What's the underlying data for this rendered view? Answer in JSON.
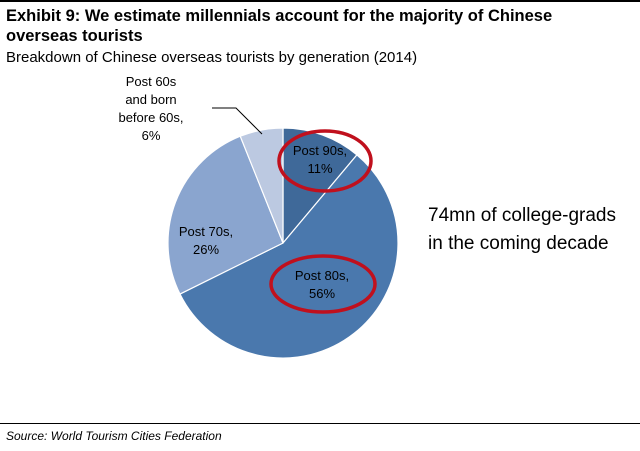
{
  "header": {
    "title": "Exhibit 9: We estimate millennials account for the majority of Chinese overseas tourists",
    "subtitle": "Breakdown of Chinese overseas tourists by generation (2014)"
  },
  "chart_data": {
    "type": "pie",
    "title": "Breakdown of Chinese overseas tourists by generation (2014)",
    "categories": [
      "Post 90s",
      "Post 80s",
      "Post 70s",
      "Post 60s and born before 60s"
    ],
    "values": [
      11,
      56,
      26,
      6
    ],
    "unit": "%",
    "labels": [
      [
        "Post 90s,",
        "11%"
      ],
      [
        "Post 80s,",
        "56%"
      ],
      [
        "Post 70s,",
        "26%"
      ],
      [
        "Post 60s",
        "and born",
        "before 60s,",
        "6%"
      ]
    ],
    "colors": [
      "#3f6999",
      "#4a78ad",
      "#8aa5cf",
      "#bcc9e1"
    ],
    "highlight_color": "#c0101d",
    "annotation": "74mn of college-grads in the coming decade"
  },
  "annotation": {
    "line1": "74mn of college-grads",
    "line2": "in the coming decade"
  },
  "footer": {
    "source": "Source: World Tourism Cities Federation"
  }
}
